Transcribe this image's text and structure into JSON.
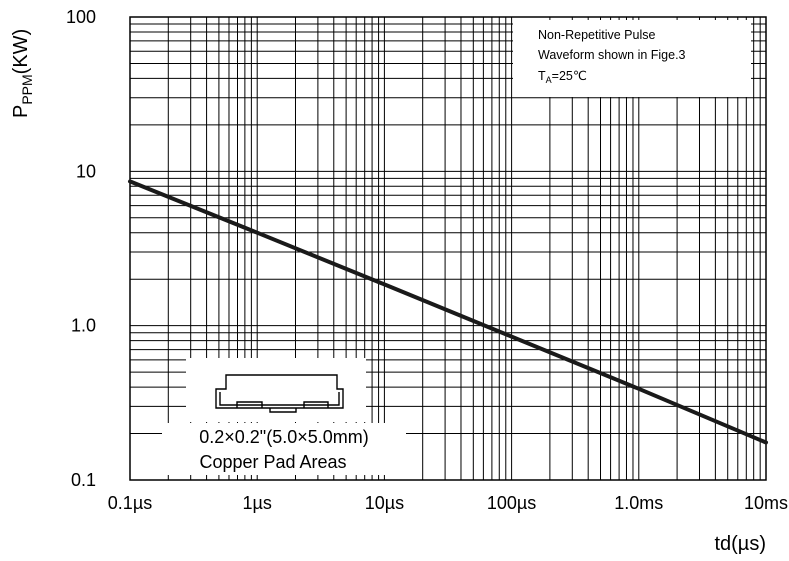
{
  "chart_data": {
    "type": "line",
    "x_scale": "log",
    "y_scale": "log",
    "xlabel": "td(µs)",
    "ylabel": "P",
    "ylabel_subscript": "PPM",
    "ylabel_unit": "(KW)",
    "xlim_us": [
      0.1,
      10000
    ],
    "ylim": [
      0.1,
      100
    ],
    "x_ticks": [
      {
        "value_us": 0.1,
        "label": "0.1µs"
      },
      {
        "value_us": 1,
        "label": "1µs"
      },
      {
        "value_us": 10,
        "label": "10µs"
      },
      {
        "value_us": 100,
        "label": "100µs"
      },
      {
        "value_us": 1000,
        "label": "1.0ms"
      },
      {
        "value_us": 10000,
        "label": "10ms"
      }
    ],
    "y_ticks": [
      {
        "value": 0.1,
        "label": "0.1"
      },
      {
        "value": 1,
        "label": "1.0"
      },
      {
        "value": 10,
        "label": "10"
      },
      {
        "value": 100,
        "label": "100"
      }
    ],
    "grid": true,
    "series": [
      {
        "x_us": [
          0.1,
          1,
          10,
          100,
          1000,
          10000
        ],
        "y": [
          8.6,
          4.0,
          1.85,
          0.85,
          0.39,
          0.175
        ],
        "color": "#1a1a1a"
      }
    ],
    "annotations": {
      "note_lines": [
        "Non-Repetitive Pulse",
        "Waveform shown in Fige.3"
      ],
      "note_temp_prefix": "T",
      "note_temp_sub": "A",
      "note_temp_suffix": "=25℃",
      "inset_line1": "0.2×0.2\"(5.0×5.0mm)",
      "inset_line2": "Copper Pad Areas"
    }
  }
}
